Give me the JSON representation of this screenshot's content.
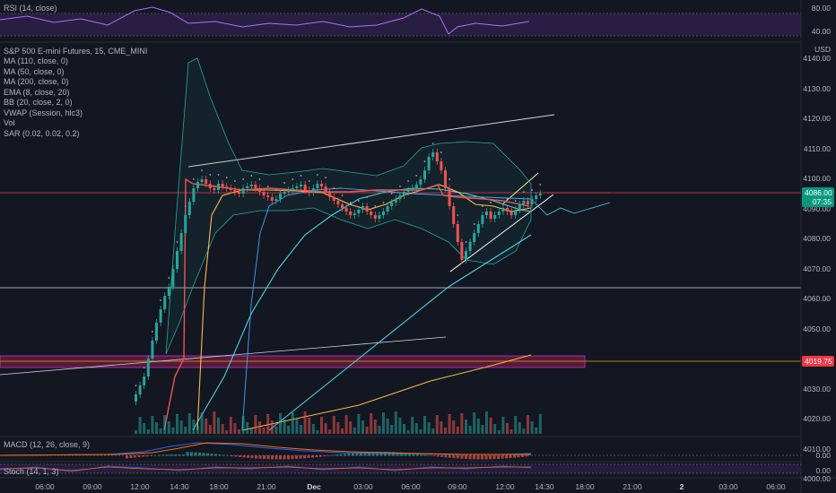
{
  "rsi_pane": {
    "label": "RSI (14, close)",
    "ticks": [
      "80.00",
      "40.00"
    ]
  },
  "main_pane": {
    "title": "S&P 500 E-mini Futures, 15, CME_MINI",
    "indicators": [
      "MA (110, close, 0)",
      "MA (50, close, 0)",
      "MA (200, close, 0)",
      "EMA (8, close, 20)",
      "BB (20, close, 2, 0)",
      "VWAP (Session, hlc3)",
      "Vol",
      "SAR (0.02, 0.02, 0.2)"
    ],
    "currency": "USD",
    "price_ticks": [
      "4140.00",
      "4130.00",
      "4120.00",
      "4110.00",
      "4100.00",
      "4090.00",
      "4080.00",
      "4070.00",
      "4060.00",
      "4050.00",
      "4040.00",
      "4030.00",
      "4020.00",
      "4010.00",
      "4000.00"
    ],
    "last_price": "4086.00",
    "countdown": "07:35",
    "level_label": "4019.75"
  },
  "macd_pane": {
    "label": "MACD (12, 26, close, 9)",
    "tick": "0.00"
  },
  "stoch_pane": {
    "label": "Stoch (14, 1, 3)",
    "tick": "0.00"
  },
  "time_axis": [
    "06:00",
    "09:00",
    "12:00",
    "14:30",
    "18:00",
    "21:00",
    "Dec",
    "03:00",
    "06:00",
    "09:00",
    "12:00",
    "14:30",
    "18:00",
    "21:00",
    "2",
    "03:00",
    "06:00"
  ],
  "colors": {
    "background": "#131722",
    "up": "#26a69a",
    "down": "#ef5350",
    "last_price": "#089981",
    "level": "#f23645"
  }
}
